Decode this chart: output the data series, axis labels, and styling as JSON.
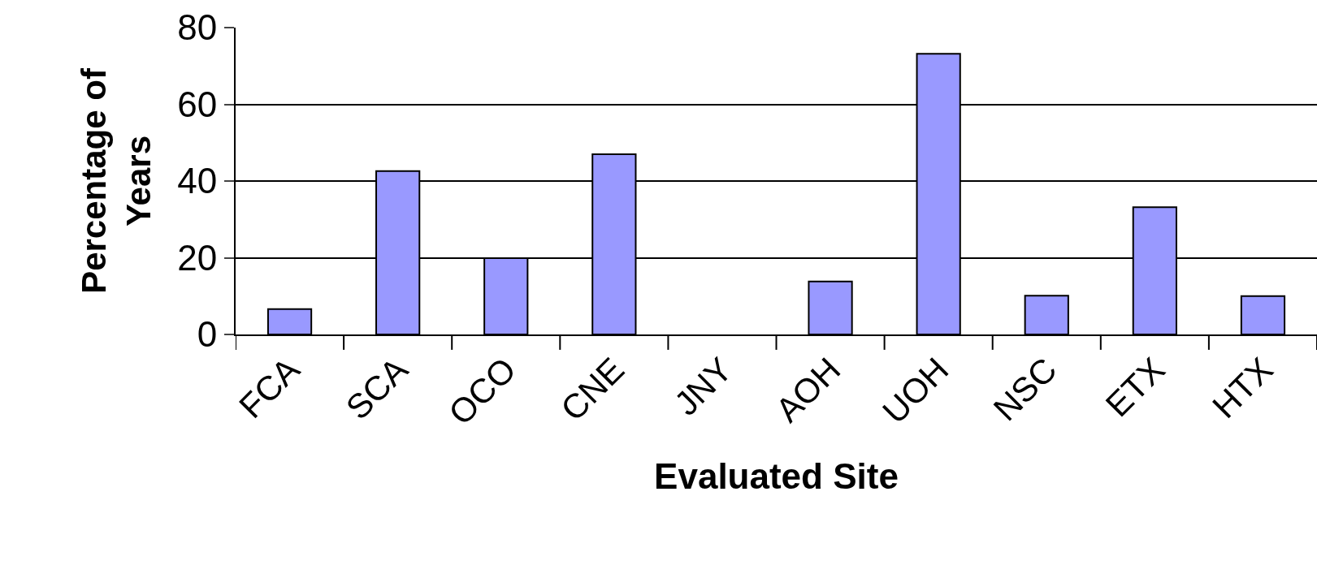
{
  "chart_data": {
    "type": "bar",
    "xlabel": "Evaluated Site",
    "ylabel": "Percentage of Years",
    "categories": [
      "FCA",
      "SCA",
      "OCO",
      "CNE",
      "JNY",
      "AOH",
      "UOH",
      "NSC",
      "ETX",
      "HTX"
    ],
    "values": [
      6.6,
      42.6,
      19.9,
      47,
      0,
      13.8,
      73.2,
      10.1,
      33.2,
      10
    ],
    "color": "#9999ff",
    "ylim": [
      0,
      80
    ],
    "yticks": [
      0,
      20,
      40,
      60,
      80
    ],
    "grid": "y"
  }
}
